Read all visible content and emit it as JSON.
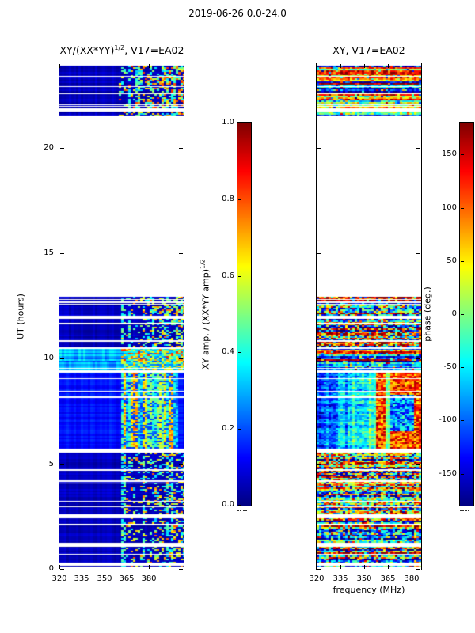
{
  "figure": {
    "title": "2019-06-26 0.0-24.0",
    "xlabel": "frequency (MHz)",
    "ylabel": "UT (hours)"
  },
  "chart_data": [
    {
      "type": "heatmap",
      "panel": "left",
      "title_parts": {
        "base": "XY/(XX*YY)",
        "sup": "1/2",
        "rest": ", V17=EA02"
      },
      "x": {
        "label": "frequency (MHz)",
        "range": [
          320,
          403
        ],
        "ticks": [
          320,
          335,
          350,
          365,
          380
        ]
      },
      "y": {
        "label": "UT (hours)",
        "range": [
          0,
          24
        ],
        "ticks": [
          0,
          5,
          10,
          15,
          20
        ]
      },
      "colorbar": {
        "label_parts": {
          "base": "XY amp. / (XX*YY amp)",
          "sup": "1/2"
        },
        "range": [
          0.0,
          1.0
        ],
        "ticks": [
          0.0,
          0.2,
          0.4,
          0.6,
          0.8,
          1.0
        ],
        "tick_labels": [
          "0.0",
          "0.2",
          "0.4",
          "0.6",
          "0.8",
          "1.0"
        ],
        "colormap": "jet"
      },
      "segments": [
        {
          "t0": 0.0,
          "t1": 5.55,
          "style": "amp_dark",
          "seed": 11,
          "stripes": 16,
          "stripe_seed": 101,
          "band": {
            "f0": 362,
            "f1": 403,
            "density": 0.42,
            "vmin": 0.3,
            "vmax": 0.8
          }
        },
        {
          "t0": 5.75,
          "t1": 9.35,
          "style": "amp_mid",
          "seed": 21,
          "stripes": 3,
          "stripe_seed": 102,
          "band": {
            "f0": 362,
            "f1": 400,
            "density": 0.72,
            "vmin": 0.35,
            "vmax": 0.8
          }
        },
        {
          "t0": 9.45,
          "t1": 9.9,
          "style": "amp_band",
          "seed": 31,
          "stripes": 1,
          "stripe_seed": 103,
          "band": {
            "f0": 362,
            "f1": 403,
            "density": 0.5,
            "vmin": 0.4,
            "vmax": 0.75
          }
        },
        {
          "t0": 9.95,
          "t1": 10.5,
          "style": "amp_band",
          "seed": 36,
          "stripes": 1,
          "stripe_seed": 104,
          "band": {
            "f0": 362,
            "f1": 403,
            "density": 0.55,
            "vmin": 0.4,
            "vmax": 0.85
          }
        },
        {
          "t0": 10.55,
          "t1": 12.95,
          "style": "amp_dark",
          "seed": 41,
          "stripes": 9,
          "stripe_seed": 105,
          "band": {
            "f0": 362,
            "f1": 403,
            "density": 0.45,
            "vmin": 0.3,
            "vmax": 0.8
          }
        },
        {
          "t0": 21.45,
          "t1": 23.9,
          "style": "amp_dark",
          "seed": 51,
          "stripes": 9,
          "stripe_seed": 106,
          "band": {
            "f0": 360,
            "f1": 403,
            "density": 0.5,
            "vmin": 0.35,
            "vmax": 0.85
          }
        }
      ]
    },
    {
      "type": "heatmap",
      "panel": "right",
      "title_parts": {
        "base": "XY, V17=EA02",
        "sup": "",
        "rest": ""
      },
      "x": {
        "label": "frequency (MHz)",
        "range": [
          320,
          386
        ],
        "ticks": [
          320,
          335,
          350,
          365,
          380
        ]
      },
      "y": {
        "label": "",
        "range": [
          0,
          24
        ],
        "ticks": [
          0,
          5,
          10,
          15,
          20
        ]
      },
      "colorbar": {
        "label_parts": {
          "base": "phase (deg.)",
          "sup": ""
        },
        "range": [
          -180,
          180
        ],
        "ticks": [
          -150,
          -100,
          -50,
          0,
          50,
          100,
          150
        ],
        "tick_labels": [
          "-150",
          "-100",
          "-50",
          "0",
          "50",
          "100",
          "150"
        ],
        "colormap": "jet"
      },
      "segments": [
        {
          "t0": 0.0,
          "t1": 5.55,
          "style": "phase_noise",
          "seed": 12,
          "stripes": 16,
          "stripe_seed": 101
        },
        {
          "t0": 5.75,
          "t1": 9.35,
          "style": "phase_block",
          "seed": 22,
          "stripes": 3,
          "stripe_seed": 102,
          "split_f": 358,
          "blob": {
            "f0": 366,
            "f1": 381,
            "t0": 6.6,
            "t1": 8.3
          },
          "line_f": [
            364,
            366
          ]
        },
        {
          "t0": 9.45,
          "t1": 9.9,
          "style": "phase_rows",
          "seed": 32,
          "stripes": 1,
          "stripe_seed": 103
        },
        {
          "t0": 9.95,
          "t1": 10.5,
          "style": "phase_rows",
          "seed": 37,
          "stripes": 1,
          "stripe_seed": 104
        },
        {
          "t0": 10.55,
          "t1": 12.95,
          "style": "phase_noise",
          "seed": 42,
          "stripes": 9,
          "stripe_seed": 105
        },
        {
          "t0": 21.45,
          "t1": 23.9,
          "style": "phase_rows",
          "seed": 52,
          "stripes": 9,
          "stripe_seed": 106
        }
      ]
    }
  ]
}
